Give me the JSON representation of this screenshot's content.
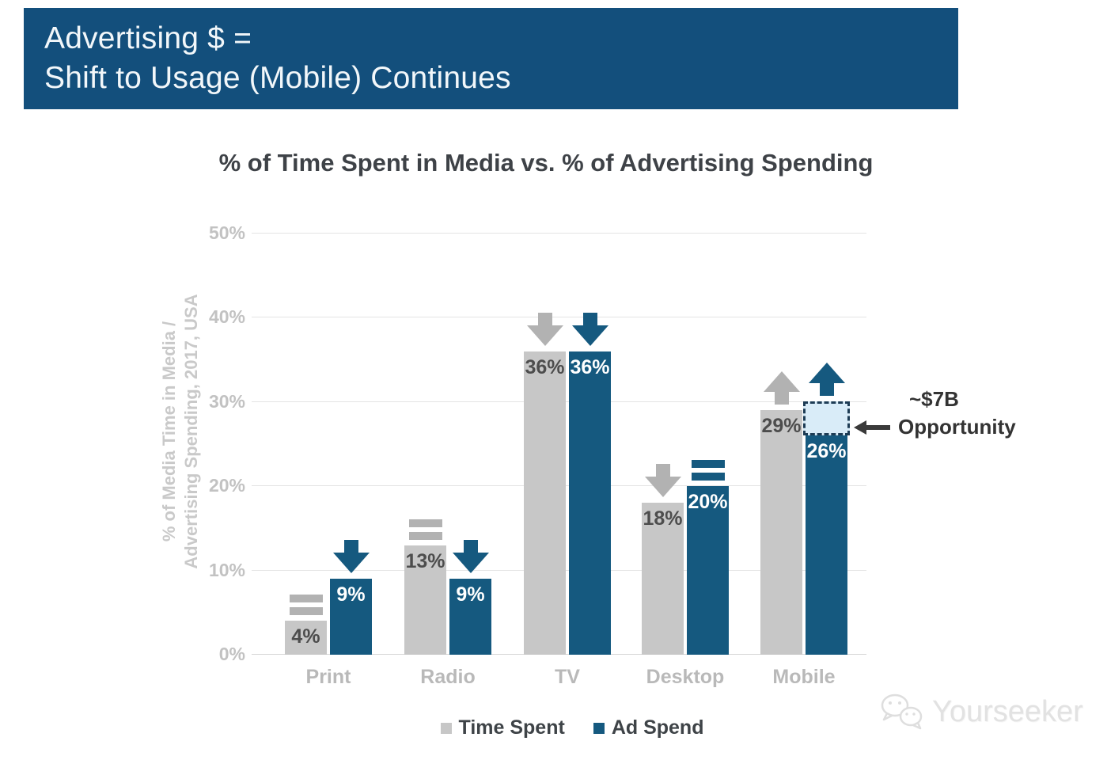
{
  "banner": {
    "line1": "Advertising $ =",
    "line2": "Shift to Usage (Mobile) Continues",
    "bg_color": "#134f7c",
    "text_color": "#f2f7fa"
  },
  "chart_data": {
    "type": "bar",
    "title": "% of Time Spent in Media vs. % of Advertising Spending",
    "categories": [
      "Print",
      "Radio",
      "TV",
      "Desktop",
      "Mobile"
    ],
    "series": [
      {
        "name": "Time Spent",
        "color": "#c7c7c7",
        "label_color": "#4d4d4d",
        "trend_color": "#b2b2b2",
        "values": [
          4,
          13,
          36,
          18,
          29
        ],
        "value_labels": [
          "4%",
          "13%",
          "36%",
          "18%",
          "29%"
        ],
        "trends": [
          "equal",
          "equal",
          "down",
          "down",
          "up"
        ]
      },
      {
        "name": "Ad Spend",
        "color": "#15597f",
        "label_color": "#ffffff",
        "trend_color": "#15597f",
        "values": [
          9,
          9,
          36,
          20,
          26
        ],
        "value_labels": [
          "9%",
          "9%",
          "36%",
          "20%",
          "26%"
        ],
        "trends": [
          "down",
          "down",
          "down",
          "equal",
          "up"
        ]
      }
    ],
    "ylabel_lines": [
      "% of Media Time in Media /",
      "Advertising Spending, 2017, USA"
    ],
    "yticks": [
      {
        "value": 0,
        "label": "0%"
      },
      {
        "value": 10,
        "label": "10%"
      },
      {
        "value": 20,
        "label": "20%"
      },
      {
        "value": 30,
        "label": "30%"
      },
      {
        "value": 40,
        "label": "40%"
      },
      {
        "value": 50,
        "label": "50%"
      }
    ],
    "ylim": [
      0,
      50
    ],
    "grid": true,
    "legend_position": "bottom",
    "annotation": {
      "title": "~$7B",
      "label": "Opportunity",
      "box_category": "Mobile",
      "box_series": "Ad Spend",
      "box_from": 26,
      "box_to": 30,
      "box_fill": "#d9ecf8",
      "box_border": "#1d3c55"
    }
  },
  "icons": {
    "trend_equal": "equals-icon",
    "trend_down": "down-arrow-icon",
    "trend_up": "up-arrow-icon",
    "annotation_pointer": "left-arrow-icon",
    "watermark_logo": "wechat-icon"
  },
  "watermark": {
    "text": "Yourseeker"
  }
}
